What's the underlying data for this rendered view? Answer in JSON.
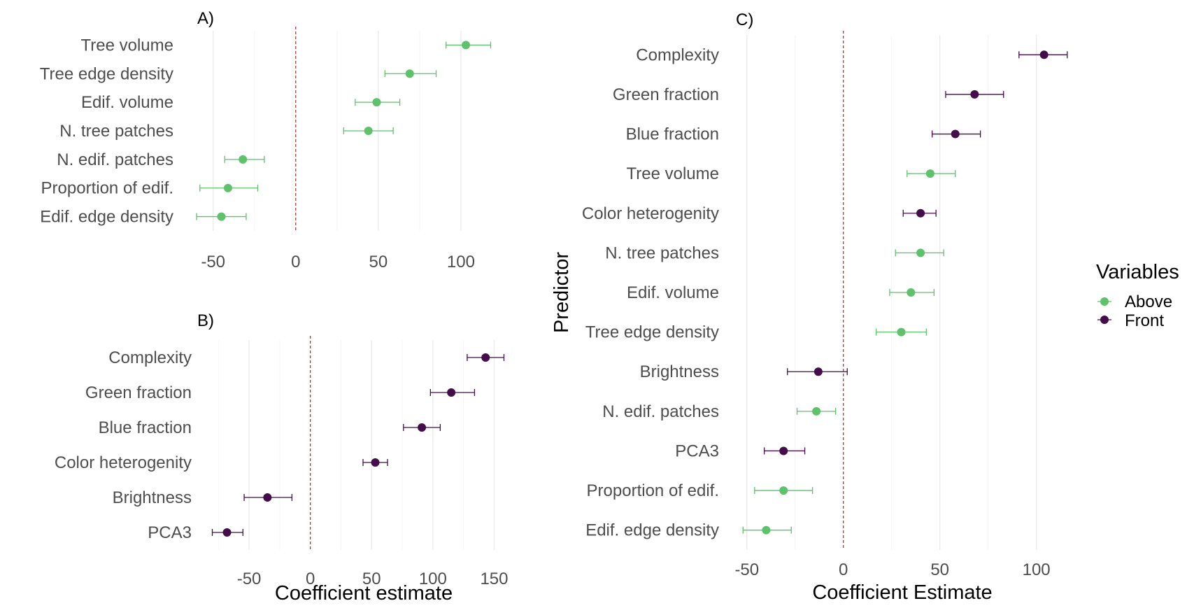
{
  "colors": {
    "Above": "#5ec26a",
    "Front": "#440c4a",
    "zero_line": "#a52a2a"
  },
  "legend": {
    "title": "Variables",
    "entries": [
      {
        "name": "Above",
        "color": "#5ec26a"
      },
      {
        "name": "Front",
        "color": "#440c4a"
      }
    ]
  },
  "chart_data": [
    {
      "id": "A",
      "type": "scatter",
      "tag": "A)",
      "xlabel": "",
      "ylabel": "",
      "xlim": [
        -63,
        125
      ],
      "xticks": [
        -50,
        0,
        50,
        100
      ],
      "xtick_labels": [
        "-50",
        "0",
        "50",
        "100"
      ],
      "reference_line": 0,
      "points": [
        {
          "label": "Tree volume",
          "est": 103,
          "lo": 91,
          "hi": 118,
          "group": "Above"
        },
        {
          "label": "Tree edge density",
          "est": 69,
          "lo": 54,
          "hi": 85,
          "group": "Above"
        },
        {
          "label": "Edif. volume",
          "est": 49,
          "lo": 36,
          "hi": 63,
          "group": "Above"
        },
        {
          "label": "N. tree patches",
          "est": 44,
          "lo": 29,
          "hi": 59,
          "group": "Above"
        },
        {
          "label": "N. edif. patches",
          "est": -32,
          "lo": -43,
          "hi": -19,
          "group": "Above"
        },
        {
          "label": "Proportion of edif.",
          "est": -41,
          "lo": -58,
          "hi": -23,
          "group": "Above"
        },
        {
          "label": "Edif. edge density",
          "est": -45,
          "lo": -60,
          "hi": -30,
          "group": "Above"
        }
      ]
    },
    {
      "id": "B",
      "type": "scatter",
      "tag": "B)",
      "xlabel": "Coefficient estimate",
      "ylabel": "",
      "xlim": [
        -82,
        168
      ],
      "xticks": [
        -50,
        0,
        50,
        100,
        150
      ],
      "xtick_labels": [
        "-50",
        "0",
        "50",
        "100",
        "150"
      ],
      "reference_line": 0,
      "points": [
        {
          "label": "Complexity",
          "est": 143,
          "lo": 128,
          "hi": 158,
          "group": "Front"
        },
        {
          "label": "Green fraction",
          "est": 115,
          "lo": 98,
          "hi": 134,
          "group": "Front"
        },
        {
          "label": "Blue fraction",
          "est": 91,
          "lo": 76,
          "hi": 106,
          "group": "Front"
        },
        {
          "label": "Color heterogenity",
          "est": 53,
          "lo": 43,
          "hi": 63,
          "group": "Front"
        },
        {
          "label": "Brightness",
          "est": -35,
          "lo": -54,
          "hi": -15,
          "group": "Front"
        },
        {
          "label": "PCA3",
          "est": -68,
          "lo": -80,
          "hi": -55,
          "group": "Front"
        }
      ]
    },
    {
      "id": "C",
      "type": "scatter",
      "tag": "C)",
      "xlabel": "Coefficient Estimate",
      "ylabel": "Predictor",
      "xlim": [
        -55,
        115
      ],
      "xticks": [
        -50,
        0,
        50,
        100
      ],
      "xtick_labels": [
        "-50",
        "0",
        "50",
        "100"
      ],
      "reference_line": 0,
      "points": [
        {
          "label": "Complexity",
          "est": 104,
          "lo": 91,
          "hi": 116,
          "group": "Front"
        },
        {
          "label": "Green fraction",
          "est": 68,
          "lo": 53,
          "hi": 83,
          "group": "Front"
        },
        {
          "label": "Blue fraction",
          "est": 58,
          "lo": 46,
          "hi": 71,
          "group": "Front"
        },
        {
          "label": "Tree volume",
          "est": 45,
          "lo": 33,
          "hi": 58,
          "group": "Above"
        },
        {
          "label": "Color heterogenity",
          "est": 40,
          "lo": 31,
          "hi": 48,
          "group": "Front"
        },
        {
          "label": "N. tree patches",
          "est": 40,
          "lo": 27,
          "hi": 52,
          "group": "Above"
        },
        {
          "label": "Edif. volume",
          "est": 35,
          "lo": 24,
          "hi": 47,
          "group": "Above"
        },
        {
          "label": "Tree edge density",
          "est": 30,
          "lo": 17,
          "hi": 43,
          "group": "Above"
        },
        {
          "label": "Brightness",
          "est": -13,
          "lo": -29,
          "hi": 2,
          "group": "Front"
        },
        {
          "label": "N. edif. patches",
          "est": -14,
          "lo": -24,
          "hi": -4,
          "group": "Above"
        },
        {
          "label": "PCA3",
          "est": -31,
          "lo": -41,
          "hi": -20,
          "group": "Front"
        },
        {
          "label": "Proportion of edif.",
          "est": -31,
          "lo": -46,
          "hi": -16,
          "group": "Above"
        },
        {
          "label": "Edif. edge density",
          "est": -40,
          "lo": -52,
          "hi": -27,
          "group": "Above"
        }
      ]
    }
  ]
}
